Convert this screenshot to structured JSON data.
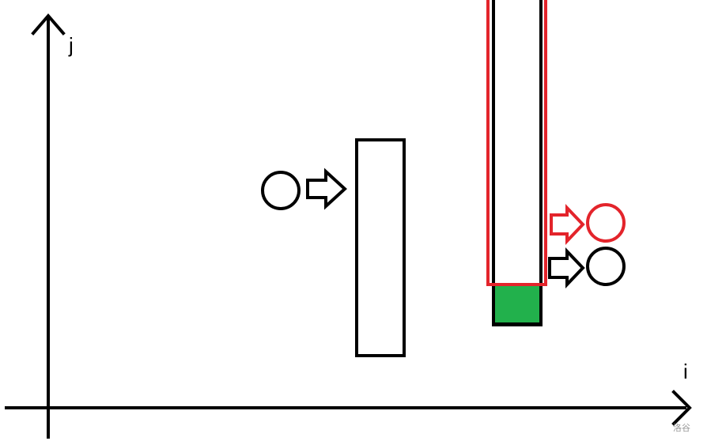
{
  "axes": {
    "x_label": "i",
    "y_label": "j"
  },
  "watermark": "洛谷",
  "colors": {
    "stroke": "#000000",
    "highlight": "#e3242b",
    "fill_green": "#22b14c",
    "background": "#ffffff"
  },
  "shapes": {
    "left_column": {
      "type": "rectangle"
    },
    "right_column": {
      "type": "rectangle"
    },
    "highlight_column": {
      "type": "rectangle-outline"
    },
    "filled_cell": {
      "type": "square"
    }
  },
  "icons": {
    "left_circle": "circle-icon",
    "left_arrow": "right-arrow-icon",
    "red_arrow": "right-arrow-icon",
    "red_circle": "circle-icon",
    "black_arrow": "right-arrow-icon",
    "black_circle": "circle-icon"
  }
}
